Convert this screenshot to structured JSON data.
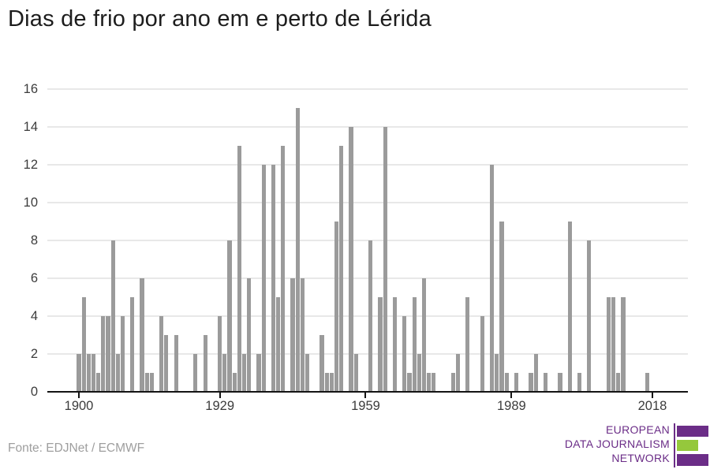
{
  "title": "Dias de frio por ano em e perto de Lérida",
  "source": "Fonte: EDJNet / ECMWF",
  "logo": {
    "line1": "EUROPEAN",
    "line2": "DATA JOURNALISM",
    "line3": "NETWORK",
    "purple": "#6b2d87",
    "green": "#95c83c"
  },
  "colors": {
    "bar": "#9b9b9b",
    "gridline": "#e8e8e8",
    "axis": "#141414",
    "tick_label": "#3c3c3c",
    "source_text": "#9e9e9e"
  },
  "chart_data": {
    "type": "bar",
    "title": "Dias de frio por ano em e perto de Lérida",
    "xlabel": "",
    "ylabel": "",
    "grid": true,
    "legend": "none",
    "year_start": 1900,
    "year_end": 2017,
    "x_ticks": [
      1900,
      1929,
      1959,
      1989,
      2018
    ],
    "y_ticks": [
      0,
      2,
      4,
      6,
      8,
      10,
      12,
      14,
      16
    ],
    "ylim": [
      0,
      16
    ],
    "xlim": [
      1893.5,
      2025
    ],
    "values": [
      2,
      5,
      2,
      2,
      1,
      4,
      4,
      8,
      2,
      4,
      0,
      5,
      0,
      6,
      1,
      1,
      0,
      4,
      3,
      0,
      3,
      0,
      0,
      0,
      2,
      0,
      3,
      0,
      0,
      4,
      2,
      8,
      1,
      13,
      2,
      6,
      0,
      2,
      12,
      0,
      12,
      5,
      13,
      0,
      6,
      15,
      6,
      2,
      0,
      0,
      3,
      1,
      1,
      9,
      13,
      0,
      14,
      2,
      0,
      0,
      8,
      0,
      5,
      14,
      0,
      5,
      0,
      4,
      1,
      5,
      2,
      6,
      1,
      1,
      0,
      0,
      0,
      1,
      2,
      0,
      5,
      0,
      0,
      4,
      0,
      12,
      2,
      9,
      1,
      0,
      1,
      0,
      0,
      1,
      2,
      0,
      1,
      0,
      0,
      1,
      0,
      9,
      0,
      1,
      0,
      8,
      0,
      0,
      0,
      5,
      5,
      1,
      5,
      0,
      0,
      0,
      0,
      1
    ]
  }
}
